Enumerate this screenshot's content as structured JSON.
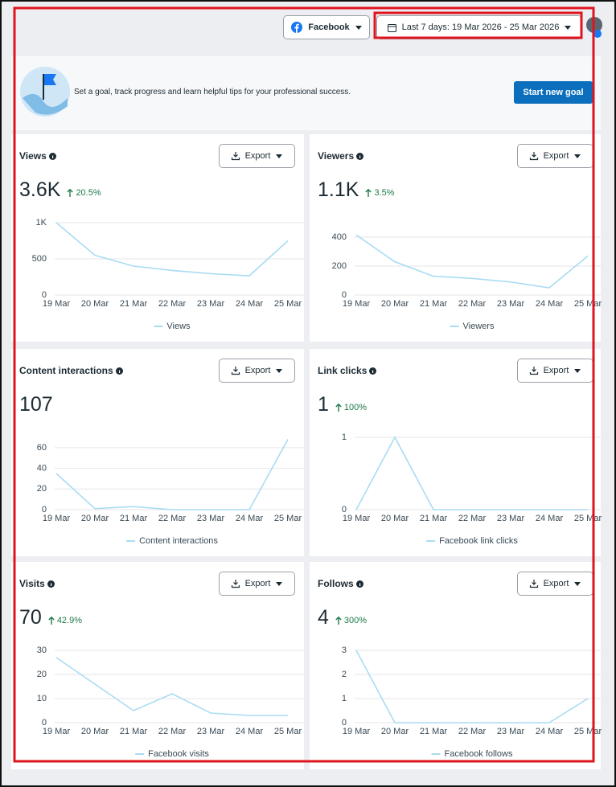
{
  "header": {
    "platform": "Facebook",
    "date_range": "Last 7 days: 19 Mar 2026 - 25 Mar 2026"
  },
  "banner": {
    "text": "Set a goal, track progress and learn helpful tips for your professional success.",
    "button": "Start new goal"
  },
  "cards": [
    {
      "title": "Views",
      "export": "Export",
      "value": "3.6K",
      "change": "20.5%",
      "chart": {
        "type": "line",
        "categories": [
          "19 Mar",
          "20 Mar",
          "21 Mar",
          "22 Mar",
          "23 Mar",
          "24 Mar",
          "25 Mar"
        ],
        "series": [
          {
            "name": "Views",
            "color": "#a9dcf3",
            "values": [
              1000,
              550,
              400,
              340,
              295,
              265,
              750
            ]
          }
        ],
        "ylim": [
          0,
          1000
        ],
        "yticks": [
          0,
          500,
          {
            "value": 1000,
            "label": "1K"
          }
        ],
        "grid": true
      }
    },
    {
      "title": "Viewers",
      "export": "Export",
      "value": "1.1K",
      "change": "3.5%",
      "chart": {
        "type": "line",
        "categories": [
          "19 Mar",
          "20 Mar",
          "21 Mar",
          "22 Mar",
          "23 Mar",
          "24 Mar",
          "25 Mar"
        ],
        "series": [
          {
            "name": "Viewers",
            "color": "#a9dcf3",
            "values": [
              415,
              230,
              130,
              115,
              90,
              50,
              270
            ]
          }
        ],
        "ylim": [
          0,
          500
        ],
        "yticks": [
          0,
          200,
          400
        ],
        "grid": true
      }
    },
    {
      "title": "Content interactions",
      "export": "Export",
      "value": "107",
      "chart": {
        "type": "line",
        "categories": [
          "19 Mar",
          "20 Mar",
          "21 Mar",
          "22 Mar",
          "23 Mar",
          "24 Mar",
          "25 Mar"
        ],
        "series": [
          {
            "name": "Content interactions",
            "color": "#a9dcf3",
            "values": [
              35,
              1,
              3,
              0,
              0,
              0,
              68
            ]
          }
        ],
        "ylim": [
          0,
          70
        ],
        "yticks": [
          0,
          20,
          40,
          60
        ],
        "grid": true
      }
    },
    {
      "title": "Link clicks",
      "export": "Export",
      "value": "1",
      "change": "100%",
      "chart": {
        "type": "line",
        "categories": [
          "19 Mar",
          "20 Mar",
          "21 Mar",
          "22 Mar",
          "23 Mar",
          "24 Mar",
          "25 Mar"
        ],
        "series": [
          {
            "name": "Facebook link clicks",
            "color": "#a9dcf3",
            "values": [
              0,
              1,
              0,
              0,
              0,
              0,
              0
            ]
          }
        ],
        "ylim": [
          0,
          1
        ],
        "yticks": [
          0,
          1
        ],
        "grid": true
      }
    },
    {
      "title": "Visits",
      "export": "Export",
      "value": "70",
      "change": "42.9%",
      "chart": {
        "type": "line",
        "categories": [
          "19 Mar",
          "20 Mar",
          "21 Mar",
          "22 Mar",
          "23 Mar",
          "24 Mar",
          "25 Mar"
        ],
        "series": [
          {
            "name": "Facebook visits",
            "color": "#a9dcf3",
            "values": [
              27,
              16,
              5,
              12,
              4,
              3,
              3
            ]
          }
        ],
        "ylim": [
          0,
          30
        ],
        "yticks": [
          0,
          10,
          20,
          30
        ],
        "grid": true
      }
    },
    {
      "title": "Follows",
      "export": "Export",
      "value": "4",
      "change": "300%",
      "chart": {
        "type": "line",
        "categories": [
          "19 Mar",
          "20 Mar",
          "21 Mar",
          "22 Mar",
          "23 Mar",
          "24 Mar",
          "25 Mar"
        ],
        "series": [
          {
            "name": "Facebook follows",
            "color": "#a9dcf3",
            "values": [
              3,
              0,
              0,
              0,
              0,
              0,
              1
            ]
          }
        ],
        "ylim": [
          0,
          3
        ],
        "yticks": [
          0,
          1,
          2,
          3
        ],
        "grid": true
      }
    }
  ]
}
